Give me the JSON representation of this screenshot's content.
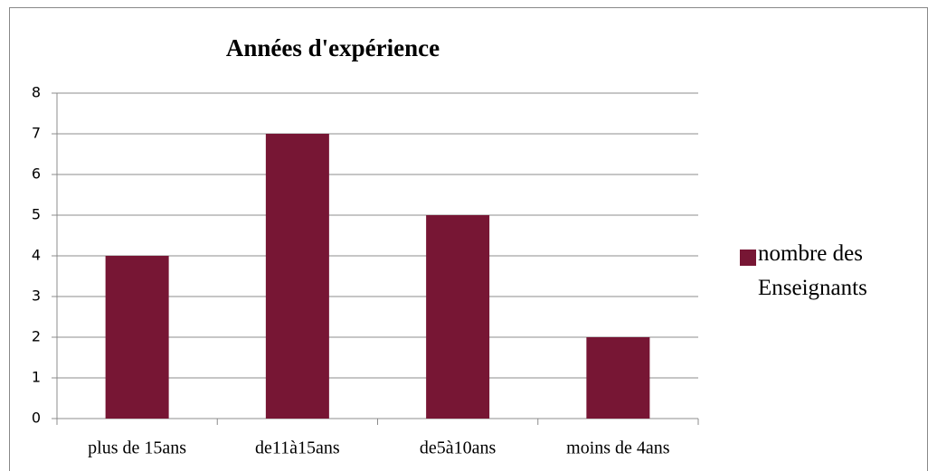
{
  "chart_data": {
    "type": "bar",
    "title": "Années d'expérience",
    "categories": [
      "plus de 15ans",
      "de11à15ans",
      "de5à10ans",
      "moins de 4ans"
    ],
    "series": [
      {
        "name": "nombre des Enseignants",
        "color": "#771634",
        "values": [
          4,
          7,
          5,
          2
        ]
      }
    ],
    "ylim": [
      0,
      8
    ],
    "yticks": [
      0,
      1,
      2,
      3,
      4,
      5,
      6,
      7,
      8
    ],
    "grid": true,
    "legend": "right"
  }
}
